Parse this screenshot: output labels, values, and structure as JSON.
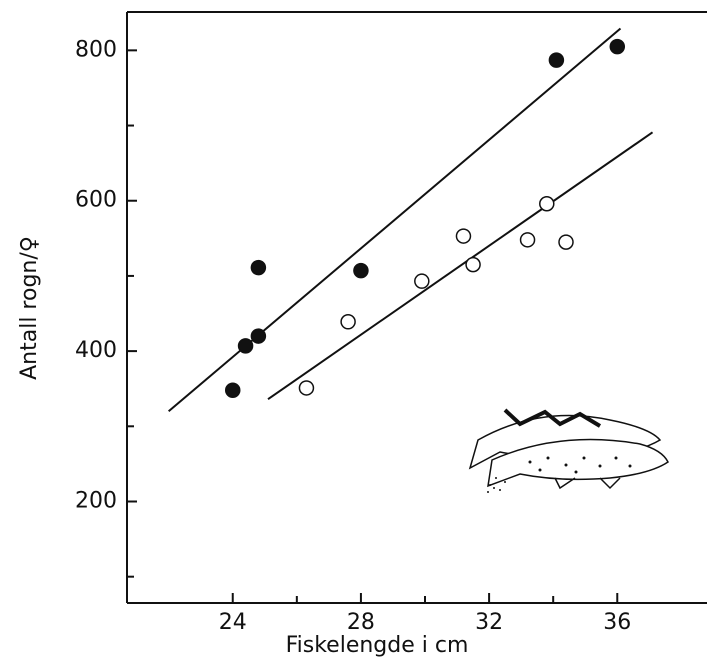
{
  "chart_data": {
    "type": "scatter",
    "xlabel": "Fiskelengde i cm",
    "ylabel": "Antall rogn/♀",
    "xlim": [
      20.7,
      38.8
    ],
    "ylim": [
      65,
      851
    ],
    "xticks": [
      24,
      28,
      32,
      36
    ],
    "yticks": [
      200,
      400,
      600,
      800
    ],
    "xminor": [
      26,
      30,
      34
    ],
    "yminor": [
      100,
      300,
      500,
      700
    ],
    "series": [
      {
        "color": "#111111",
        "filled": true,
        "x": [
          24.0,
          24.4,
          24.8,
          24.8,
          28.0,
          34.1,
          36.0
        ],
        "values": [
          348,
          407,
          511,
          420,
          507,
          787,
          805
        ],
        "fit": {
          "x": [
            22.0,
            36.1
          ],
          "y": [
            320,
            829
          ]
        }
      },
      {
        "color": "#111111",
        "filled": false,
        "x": [
          26.3,
          27.6,
          29.9,
          31.2,
          31.5,
          33.2,
          33.8,
          34.4
        ],
        "values": [
          351,
          439,
          493,
          553,
          515,
          548,
          596,
          545
        ],
        "fit": {
          "x": [
            25.1,
            37.1
          ],
          "y": [
            336,
            691
          ]
        }
      }
    ]
  }
}
